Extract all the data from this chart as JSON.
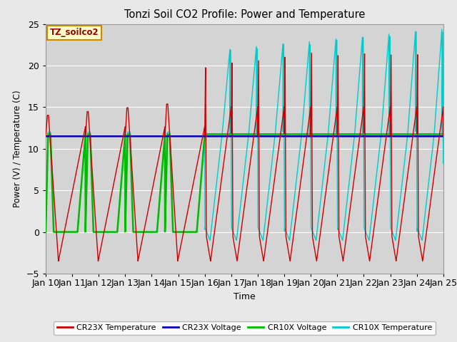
{
  "title": "Tonzi Soil CO2 Profile: Power and Temperature",
  "xlabel": "Time",
  "ylabel": "Power (V) / Temperature (C)",
  "ylim": [
    -5,
    25
  ],
  "x_tick_labels": [
    "Jan 10",
    "Jan 11",
    "Jan 12",
    "Jan 13",
    "Jan 14",
    "Jan 15",
    "Jan 16",
    "Jan 17",
    "Jan 18",
    "Jan 19",
    "Jan 20",
    "Jan 21",
    "Jan 22",
    "Jan 23",
    "Jan 24",
    "Jan 25"
  ],
  "legend_label": "TZ_soilco2",
  "bg_color": "#e8e8e8",
  "plot_bg_color": "#d4d4d4",
  "grid_color": "#ffffff",
  "colors": {
    "cr23x_temp": "#cc0000",
    "cr23x_volt": "#0000bb",
    "cr10x_volt": "#00bb00",
    "cr10x_temp": "#00cccc"
  },
  "cr23x_volt_val": 11.5,
  "cr10x_volt_val": 11.75
}
